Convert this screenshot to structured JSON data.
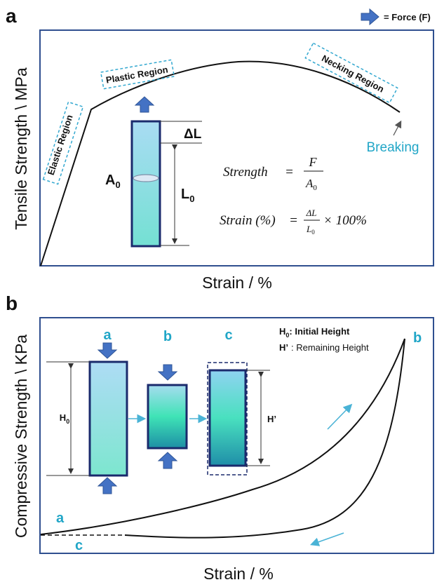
{
  "legend": {
    "force_label": "= Force (F)",
    "force_icon": "right-arrow-icon"
  },
  "panel_a": {
    "label": "a",
    "ylabel": "Tensile Strength \\ MPa",
    "xlabel": "Strain / %",
    "regions": [
      "Elastic Region",
      "Plastic Region",
      "Necking Region"
    ],
    "breaking": "Breaking",
    "specimen": {
      "area": "A",
      "area_sub": "0",
      "length": "L",
      "length_sub": "0",
      "delta": "ΔL"
    },
    "formula_strength": {
      "lhs": "Strength",
      "eq": "=",
      "num": "F",
      "den": "A",
      "den_sub": "0"
    },
    "formula_strain": {
      "lhs": "Strain (%)",
      "eq": "=",
      "num": "ΔL",
      "den": "L",
      "den_sub": "0",
      "tail": "× 100%"
    }
  },
  "panel_b": {
    "label": "b",
    "ylabel": "Compressive Strength \\ KPa",
    "xlabel": "Strain / %",
    "legend_h0": {
      "sym": "H",
      "sub": "0",
      "text": ": Initial Height"
    },
    "legend_hp": {
      "sym": "H’",
      "text": ": Remaining  Height"
    },
    "stage_labels": [
      "a",
      "b",
      "c"
    ],
    "h0_label": "H",
    "h0_sub": "0",
    "hp_label": "H’",
    "curve_labels": [
      "a",
      "b",
      "c"
    ]
  },
  "colors": {
    "axis": "#2f4f8f",
    "accent": "#21a6c7",
    "arrow_blue": "#4472c4",
    "specimen_border": "#1a2a6c",
    "text": "#111111"
  }
}
